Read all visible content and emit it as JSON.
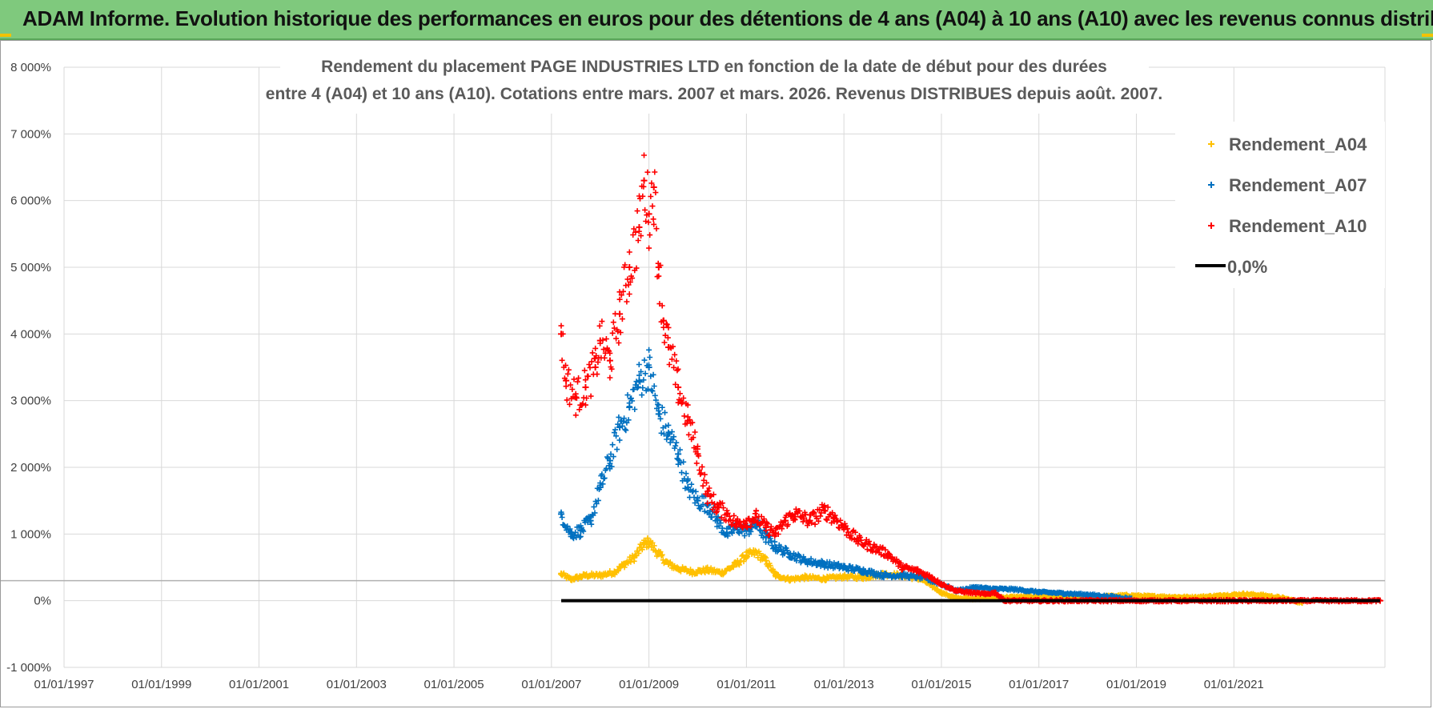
{
  "header": {
    "title": "ADAM Informe. Evolution historique des performances en euros pour des détentions de 4 ans (A04) à 10 ans (A10) avec les revenus connus distribués"
  },
  "colors": {
    "header_bg": "#7fc97d",
    "A04": "#ffc000",
    "A07": "#0070c0",
    "A10": "#ff0000",
    "zero_line": "#000000",
    "grid": "#d9d9d9"
  },
  "chart_data": {
    "type": "scatter",
    "title": [
      "Rendement du placement PAGE INDUSTRIES LTD en fonction de la date de début pour des durées",
      "entre 4 (A04) et 10 ans (A10).  Cotations entre mars. 2007 et mars. 2026. Revenus DISTRIBUES depuis août. 2007."
    ],
    "xlabel": "",
    "ylabel": "",
    "x_range": [
      1997.0,
      2024.1
    ],
    "ylim": [
      -1000,
      8000
    ],
    "y_ticks": [
      {
        "value": -1000,
        "label": "-1 000%"
      },
      {
        "value": 0,
        "label": "0%"
      },
      {
        "value": 1000,
        "label": "1 000%"
      },
      {
        "value": 2000,
        "label": "2 000%"
      },
      {
        "value": 3000,
        "label": "3 000%"
      },
      {
        "value": 4000,
        "label": "4 000%"
      },
      {
        "value": 5000,
        "label": "5 000%"
      },
      {
        "value": 6000,
        "label": "6 000%"
      },
      {
        "value": 7000,
        "label": "7 000%"
      },
      {
        "value": 8000,
        "label": "8 000%"
      }
    ],
    "x_ticks": [
      {
        "value": 1997,
        "label": "01/01/1997"
      },
      {
        "value": 1999,
        "label": "01/01/1999"
      },
      {
        "value": 2001,
        "label": "01/01/2001"
      },
      {
        "value": 2003,
        "label": "01/01/2003"
      },
      {
        "value": 2005,
        "label": "01/01/2005"
      },
      {
        "value": 2007,
        "label": "01/01/2007"
      },
      {
        "value": 2009,
        "label": "01/01/2009"
      },
      {
        "value": 2011,
        "label": "01/01/2011"
      },
      {
        "value": 2013,
        "label": "01/01/2013"
      },
      {
        "value": 2015,
        "label": "01/01/2015"
      },
      {
        "value": 2017,
        "label": "01/01/2017"
      },
      {
        "value": 2019,
        "label": "01/01/2019"
      },
      {
        "value": 2021,
        "label": "01/01/2021"
      }
    ],
    "grid": true,
    "legend_position": "top-right",
    "series": [
      {
        "name": "Rendement_A04",
        "marker": "+",
        "color": "#ffc000",
        "points": [
          [
            2007.2,
            400
          ],
          [
            2007.4,
            320
          ],
          [
            2007.7,
            380
          ],
          [
            2008.0,
            380
          ],
          [
            2008.3,
            430
          ],
          [
            2008.5,
            550
          ],
          [
            2008.7,
            650
          ],
          [
            2008.9,
            850
          ],
          [
            2009.0,
            880
          ],
          [
            2009.2,
            700
          ],
          [
            2009.4,
            550
          ],
          [
            2009.6,
            480
          ],
          [
            2009.9,
            430
          ],
          [
            2010.2,
            460
          ],
          [
            2010.5,
            420
          ],
          [
            2010.8,
            550
          ],
          [
            2011.0,
            680
          ],
          [
            2011.2,
            720
          ],
          [
            2011.4,
            600
          ],
          [
            2011.6,
            380
          ],
          [
            2011.9,
            320
          ],
          [
            2012.2,
            350
          ],
          [
            2012.6,
            330
          ],
          [
            2013.0,
            360
          ],
          [
            2013.4,
            350
          ],
          [
            2013.8,
            400
          ],
          [
            2014.2,
            380
          ],
          [
            2014.6,
            320
          ],
          [
            2015.0,
            120
          ],
          [
            2015.3,
            40
          ],
          [
            2015.7,
            30
          ],
          [
            2016.2,
            50
          ],
          [
            2016.8,
            60
          ],
          [
            2017.5,
            60
          ],
          [
            2018.2,
            60
          ],
          [
            2018.8,
            80
          ],
          [
            2019.5,
            60
          ],
          [
            2020.2,
            50
          ],
          [
            2020.8,
            80
          ],
          [
            2021.2,
            100
          ],
          [
            2021.6,
            80
          ],
          [
            2022.0,
            40
          ],
          [
            2022.4,
            -30
          ]
        ]
      },
      {
        "name": "Rendement_A07",
        "marker": "+",
        "color": "#0070c0",
        "points": [
          [
            2007.2,
            1300
          ],
          [
            2007.4,
            1000
          ],
          [
            2007.6,
            1050
          ],
          [
            2007.8,
            1200
          ],
          [
            2008.0,
            1700
          ],
          [
            2008.2,
            2100
          ],
          [
            2008.4,
            2600
          ],
          [
            2008.6,
            2900
          ],
          [
            2008.8,
            3300
          ],
          [
            2009.0,
            3500
          ],
          [
            2009.2,
            2800
          ],
          [
            2009.4,
            2500
          ],
          [
            2009.6,
            2200
          ],
          [
            2009.8,
            1700
          ],
          [
            2010.0,
            1500
          ],
          [
            2010.2,
            1450
          ],
          [
            2010.4,
            1200
          ],
          [
            2010.6,
            1000
          ],
          [
            2010.8,
            1100
          ],
          [
            2011.0,
            1050
          ],
          [
            2011.2,
            1150
          ],
          [
            2011.4,
            950
          ],
          [
            2011.6,
            800
          ],
          [
            2011.9,
            700
          ],
          [
            2012.2,
            600
          ],
          [
            2012.6,
            550
          ],
          [
            2013.0,
            500
          ],
          [
            2013.4,
            450
          ],
          [
            2013.8,
            380
          ],
          [
            2014.2,
            380
          ],
          [
            2014.6,
            350
          ],
          [
            2015.0,
            250
          ],
          [
            2015.3,
            150
          ],
          [
            2015.7,
            200
          ],
          [
            2016.0,
            180
          ],
          [
            2016.5,
            170
          ],
          [
            2017.0,
            130
          ],
          [
            2017.5,
            110
          ],
          [
            2018.0,
            90
          ],
          [
            2018.5,
            60
          ],
          [
            2018.9,
            30
          ]
        ]
      },
      {
        "name": "Rendement_A10",
        "marker": "+",
        "color": "#ff0000",
        "points": [
          [
            2007.2,
            4000
          ],
          [
            2007.3,
            3300
          ],
          [
            2007.5,
            3050
          ],
          [
            2007.7,
            3200
          ],
          [
            2007.9,
            3500
          ],
          [
            2008.0,
            3900
          ],
          [
            2008.2,
            3600
          ],
          [
            2008.4,
            4300
          ],
          [
            2008.6,
            5000
          ],
          [
            2008.8,
            5600
          ],
          [
            2008.9,
            6300
          ],
          [
            2009.0,
            5800
          ],
          [
            2009.1,
            6200
          ],
          [
            2009.2,
            5000
          ],
          [
            2009.3,
            4200
          ],
          [
            2009.4,
            3800
          ],
          [
            2009.6,
            3200
          ],
          [
            2009.8,
            2700
          ],
          [
            2010.0,
            2200
          ],
          [
            2010.2,
            1600
          ],
          [
            2010.4,
            1400
          ],
          [
            2010.6,
            1300
          ],
          [
            2010.8,
            1150
          ],
          [
            2011.0,
            1200
          ],
          [
            2011.2,
            1250
          ],
          [
            2011.4,
            1100
          ],
          [
            2011.6,
            1000
          ],
          [
            2011.8,
            1200
          ],
          [
            2012.0,
            1300
          ],
          [
            2012.3,
            1200
          ],
          [
            2012.6,
            1350
          ],
          [
            2012.8,
            1250
          ],
          [
            2013.0,
            1100
          ],
          [
            2013.3,
            900
          ],
          [
            2013.6,
            800
          ],
          [
            2013.9,
            700
          ],
          [
            2014.2,
            500
          ],
          [
            2014.5,
            450
          ],
          [
            2014.8,
            350
          ],
          [
            2015.0,
            250
          ],
          [
            2015.3,
            150
          ],
          [
            2015.6,
            120
          ],
          [
            2015.9,
            100
          ],
          [
            2016.1,
            120
          ],
          [
            2016.3,
            0
          ],
          [
            2017.0,
            0
          ],
          [
            2018.0,
            0
          ],
          [
            2019.0,
            0
          ],
          [
            2020.0,
            0
          ],
          [
            2021.0,
            0
          ],
          [
            2022.0,
            0
          ],
          [
            2023.0,
            0
          ],
          [
            2024.0,
            0
          ]
        ]
      }
    ],
    "zero_line": {
      "name": "0,0%",
      "x_start": 2007.2,
      "x_end": 2024.0,
      "y": 0,
      "color": "#000000"
    }
  }
}
